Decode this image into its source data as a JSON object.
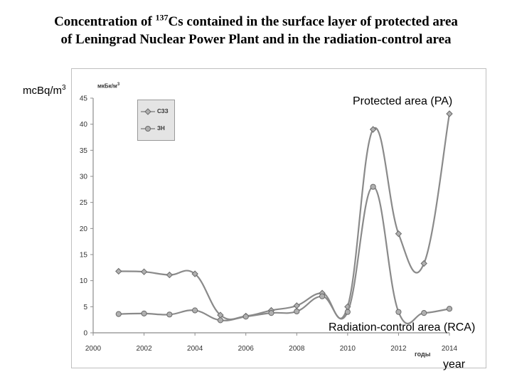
{
  "title": {
    "line1_prefix": "Concentration of ",
    "line1_sup": "137",
    "line1_suffix": "Cs contained in the surface layer of protected area",
    "line2": "of Leningrad Nuclear Power Plant and in the radiation-control area"
  },
  "units": {
    "en_base": "mcBq/m",
    "en_sup": "3",
    "ru_base": "мкБк/м",
    "ru_sup": "3"
  },
  "annotations": {
    "protected": "Protected area (PA)",
    "control": "Radiation-control area (RCA)",
    "year": "year",
    "gody": "годы"
  },
  "legend": [
    {
      "label": "СЗЗ"
    },
    {
      "label": "ЗН"
    }
  ],
  "colors": {
    "series_line": "#8a8a8a",
    "marker_fill": "#b0b0b0",
    "marker_stroke": "#6a6a6a",
    "axis": "#8c8c8c",
    "tick_text": "#333333"
  },
  "chart_data": {
    "type": "line",
    "title": "Concentration of 137Cs contained in the surface layer of protected area of Leningrad Nuclear Power Plant and in the radiation-control area",
    "xlabel": "year",
    "ylabel": "mcBq/m3",
    "xlim": [
      2000,
      2014
    ],
    "ylim": [
      0,
      45
    ],
    "x_ticks": [
      2000,
      2002,
      2004,
      2006,
      2008,
      2010,
      2012,
      2014
    ],
    "y_ticks": [
      0,
      5,
      10,
      15,
      20,
      25,
      30,
      35,
      40,
      45
    ],
    "grid": false,
    "legend_position": "top-left",
    "series": [
      {
        "name": "СЗЗ",
        "label": "Protected area (PA)",
        "marker": "diamond",
        "x": [
          2001,
          2002,
          2003,
          2004,
          2005,
          2006,
          2007,
          2008,
          2009,
          2010,
          2011,
          2012,
          2013,
          2014
        ],
        "y": [
          11.8,
          11.7,
          11.1,
          11.3,
          3.4,
          3.2,
          4.3,
          5.2,
          7.6,
          5.0,
          39.0,
          19.0,
          13.3,
          42.0
        ]
      },
      {
        "name": "ЗН",
        "label": "Radiation-control area (RCA)",
        "marker": "circle",
        "x": [
          2001,
          2002,
          2003,
          2004,
          2005,
          2006,
          2007,
          2008,
          2009,
          2010,
          2011,
          2012,
          2013,
          2014
        ],
        "y": [
          3.6,
          3.7,
          3.5,
          4.3,
          2.4,
          3.1,
          3.8,
          4.1,
          7.0,
          4.0,
          28.0,
          4.0,
          3.8,
          4.6
        ]
      }
    ]
  }
}
